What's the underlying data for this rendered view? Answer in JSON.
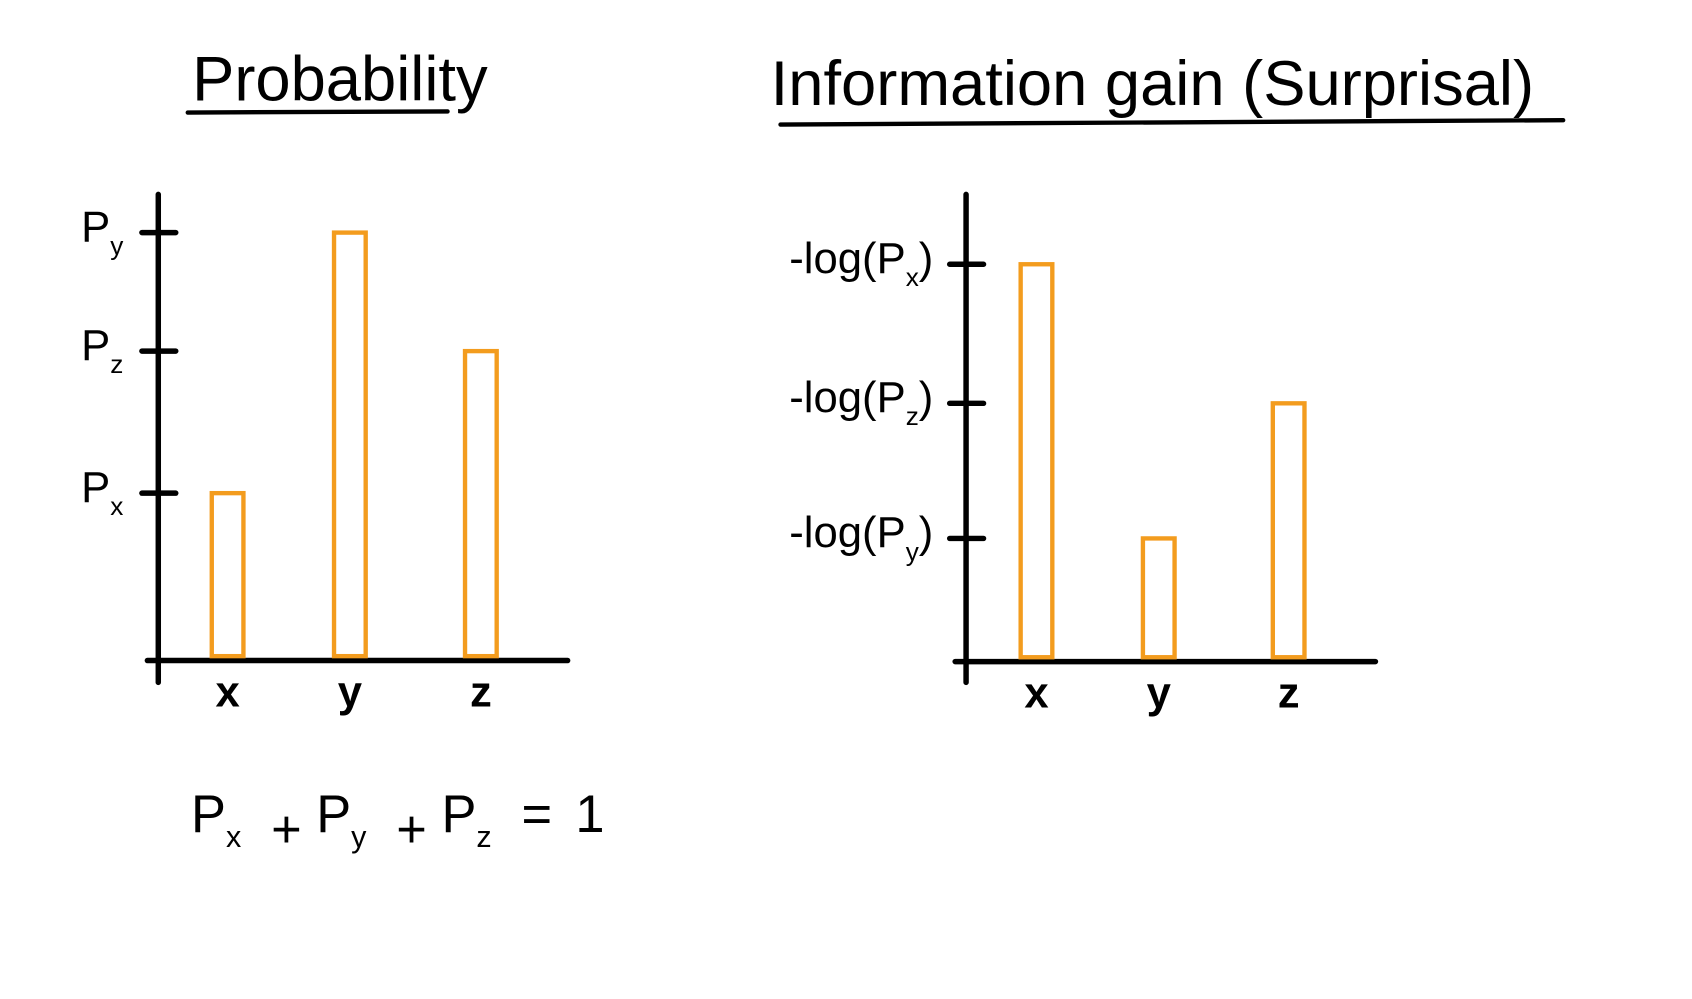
{
  "colors": {
    "ink": "#000000",
    "bar": "#F39C1E",
    "background": "#FFFFFF"
  },
  "chart_data": [
    {
      "type": "bar",
      "title": "Probability",
      "categories": [
        "x",
        "y",
        "z"
      ],
      "values": [
        0.185,
        0.473,
        0.342
      ],
      "ylim": [
        0,
        0.5
      ],
      "grid": false,
      "yticks": [
        {
          "base": "P",
          "sub": "y",
          "value": 0.473
        },
        {
          "base": "P",
          "sub": "z",
          "value": 0.342
        },
        {
          "base": "P",
          "sub": "x",
          "value": 0.185
        }
      ],
      "equation": {
        "terms": [
          {
            "base": "P",
            "sub": "x"
          },
          {
            "base": "P",
            "sub": "y"
          },
          {
            "base": "P",
            "sub": "z"
          }
        ],
        "plus": "+",
        "equals": "=",
        "rhs": "1"
      }
    },
    {
      "type": "bar",
      "title": "Information gain (Surprisal)",
      "categories": [
        "x",
        "y",
        "z"
      ],
      "values": [
        1.0,
        0.31,
        0.65
      ],
      "ylim": [
        0,
        1.05
      ],
      "grid": false,
      "yticks": [
        {
          "prefix": "-log(",
          "base": "P",
          "sub": "x",
          "suffix": ")",
          "value": 1.0
        },
        {
          "prefix": "-log(",
          "base": "P",
          "sub": "z",
          "suffix": ")",
          "value": 0.65
        },
        {
          "prefix": "-log(",
          "base": "P",
          "sub": "y",
          "suffix": ")",
          "value": 0.31
        }
      ]
    }
  ]
}
